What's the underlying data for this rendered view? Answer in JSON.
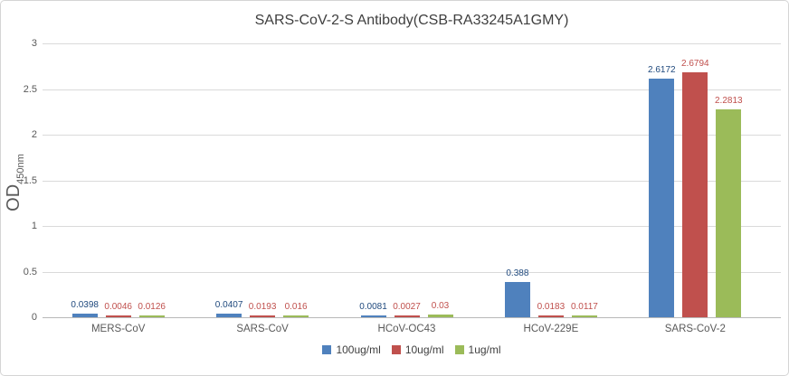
{
  "chart": {
    "title": "SARS-CoV-2-S Antibody(CSB-RA33245A1GMY)",
    "y_axis_title_main": "OD",
    "y_axis_title_sub": "450nm"
  },
  "chart_data": {
    "type": "bar",
    "title": "SARS-CoV-2-S Antibody(CSB-RA33245A1GMY)",
    "xlabel": "",
    "ylabel": "OD450nm",
    "ylim": [
      0,
      3
    ],
    "yticks": [
      "0",
      "0.5",
      "1",
      "1.5",
      "2",
      "2.5",
      "3"
    ],
    "grid": true,
    "legend_position": "bottom",
    "categories": [
      "MERS-CoV",
      "SARS-CoV",
      "HCoV-OC43",
      "HCoV-229E",
      "SARS-CoV-2"
    ],
    "series": [
      {
        "name": "100ug/ml",
        "color": "#4F81BD",
        "label_color": "#1F497D",
        "values": [
          0.0398,
          0.0407,
          0.0081,
          0.388,
          2.6172
        ],
        "labels": [
          "0.0398",
          "0.0407",
          "0.0081",
          "0.388",
          "2.6172"
        ]
      },
      {
        "name": "10ug/ml",
        "color": "#C0504D",
        "label_color": "#C0504D",
        "values": [
          0.0046,
          0.0193,
          0.0027,
          0.0183,
          2.6794
        ],
        "labels": [
          "0.0046",
          "0.0193",
          "0.0027",
          "0.0183",
          "2.6794"
        ]
      },
      {
        "name": "1ug/ml",
        "color": "#9BBB59",
        "label_color": "#C0504D",
        "values": [
          0.0126,
          0.016,
          0.03,
          0.0117,
          2.2813
        ],
        "labels": [
          "0.0126",
          "0.016",
          "0.03",
          "0.0117",
          "2.2813"
        ]
      }
    ],
    "theme": {
      "gridline": "#DADADA",
      "axis_line": "#B9B9B9",
      "tick_text": "#595959",
      "title_text": "#3F3F3F",
      "legend_text": "#404040"
    }
  }
}
